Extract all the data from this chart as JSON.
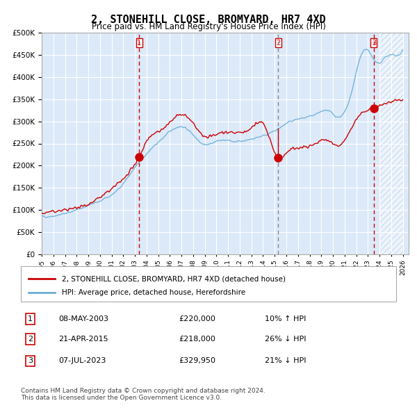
{
  "title": "2, STONEHILL CLOSE, BROMYARD, HR7 4XD",
  "subtitle": "Price paid vs. HM Land Registry's House Price Index (HPI)",
  "hpi_label": "HPI: Average price, detached house, Herefordshire",
  "property_label": "2, STONEHILL CLOSE, BROMYARD, HR7 4XD (detached house)",
  "footer": "Contains HM Land Registry data © Crown copyright and database right 2024.\nThis data is licensed under the Open Government Licence v3.0.",
  "sale_dates": [
    "08-MAY-2003",
    "21-APR-2015",
    "07-JUL-2023"
  ],
  "sale_prices": [
    220000,
    218000,
    329950
  ],
  "sale_hpi_pct": [
    "10% ↑ HPI",
    "26% ↓ HPI",
    "21% ↓ HPI"
  ],
  "sale_date_floats": [
    2003.354,
    2015.302,
    2023.513
  ],
  "vline_colors": [
    "#cc0000",
    "#888888",
    "#cc0000"
  ],
  "ylim": [
    0,
    500000
  ],
  "xlim_start": 1995.0,
  "xlim_end": 2026.5,
  "background_color": "#dce9f8",
  "plot_bg": "#dce9f8",
  "grid_color": "#ffffff",
  "red_line_color": "#cc0000",
  "blue_line_color": "#6baed6",
  "hatch_color": "#b0c8e8"
}
